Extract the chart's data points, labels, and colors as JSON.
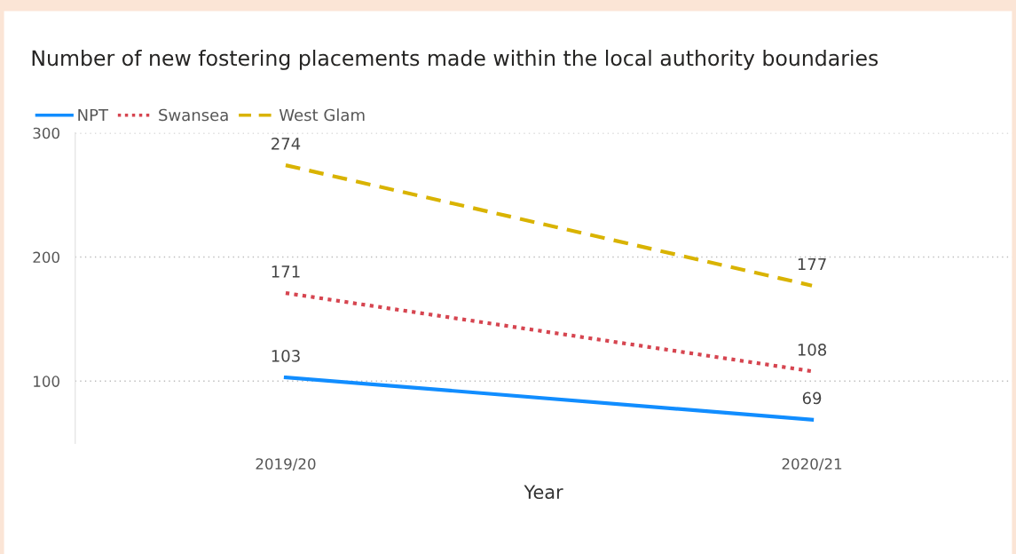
{
  "chart_data": {
    "type": "line",
    "title": "Number of new fostering placements made within the local authority boundaries",
    "xlabel": "Year",
    "categories": [
      "2019/20",
      "2020/21"
    ],
    "series": [
      {
        "name": "NPT",
        "color": "#118dff",
        "values": [
          103,
          69
        ],
        "line_style": "solid"
      },
      {
        "name": "Swansea",
        "color": "#d64550",
        "values": [
          171,
          108
        ],
        "line_style": "dotted"
      },
      {
        "name": "West Glam",
        "color": "#d9b300",
        "values": [
          274,
          177
        ],
        "line_style": "dashed"
      }
    ],
    "ylim": [
      50,
      300
    ],
    "yticks": [
      100,
      200,
      300
    ],
    "grid": "y",
    "legend": "top left",
    "data_labels": true,
    "marker": "none"
  }
}
